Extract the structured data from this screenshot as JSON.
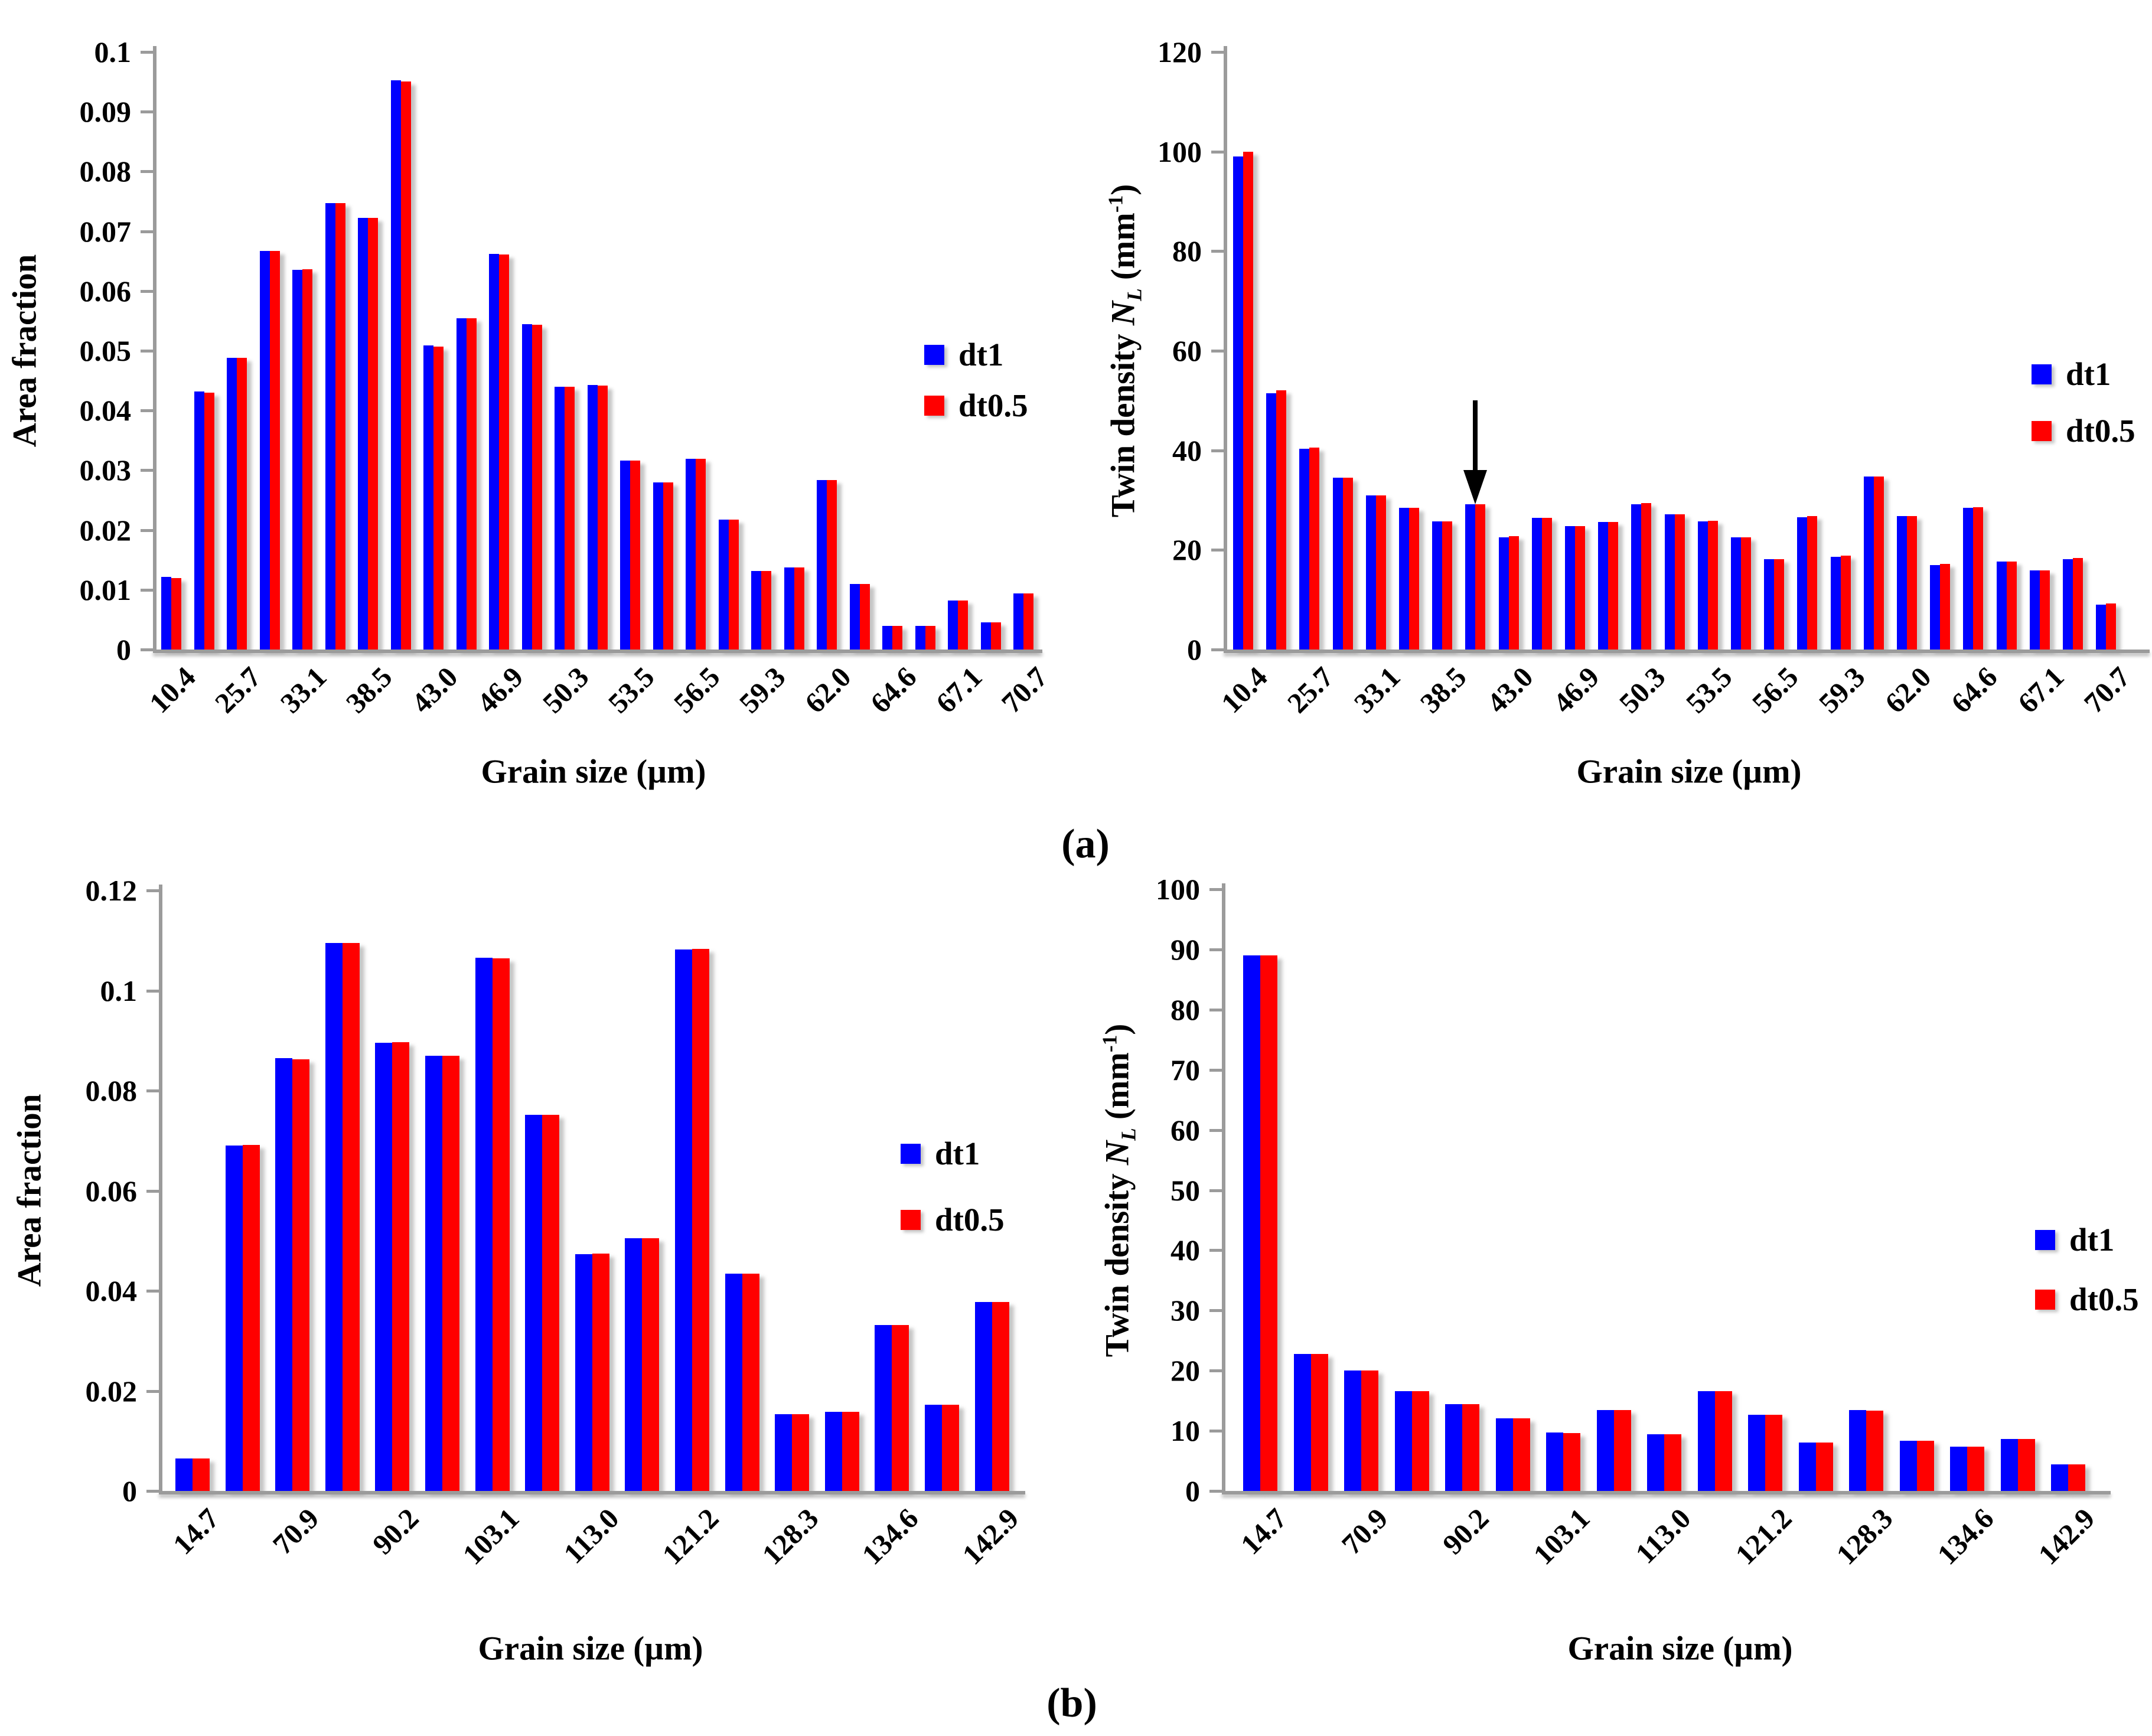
{
  "figure": {
    "background": "#ffffff",
    "description": "Grain size statistics: area fraction and twin density for two time steps"
  },
  "panels": {
    "a_label": "(a)",
    "b_label": "(b)"
  },
  "colors": {
    "dt1": "#0000ff",
    "dt0_5": "#ff0000",
    "axis": "#9b9b9b",
    "text": "#000000",
    "annotation": "#000000"
  },
  "legend": {
    "entries": [
      {
        "label": "dt1"
      },
      {
        "label": "dt0.5"
      }
    ]
  },
  "chart_data": [
    {
      "id": "a_area",
      "type": "bar",
      "panel": "a",
      "xlabel": "Grain size (µm)",
      "ylabel": "Area fraction",
      "ylim": [
        0,
        0.1
      ],
      "grid": false,
      "legend_position": "right-inside",
      "ytick_labels": [
        "0",
        "0.01",
        "0.02",
        "0.03",
        "0.04",
        "0.05",
        "0.06",
        "0.07",
        "0.08",
        "0.09",
        "0.1"
      ],
      "categories": [
        "10.4",
        "",
        "25.7",
        "",
        "33.1",
        "",
        "38.5",
        "",
        "43.0",
        "",
        "46.9",
        "",
        "50.3",
        "",
        "53.5",
        "",
        "56.5",
        "",
        "59.3",
        "",
        "62.0",
        "",
        "64.6",
        "",
        "67.1",
        "",
        "70.7"
      ],
      "series": [
        {
          "name": "dt1",
          "color": "#0000ff",
          "values": [
            0.0122,
            0.0432,
            0.0488,
            0.0667,
            0.0635,
            0.0747,
            0.0722,
            0.0953,
            0.0509,
            0.0554,
            0.0662,
            0.0544,
            0.044,
            0.0443,
            0.0316,
            0.028,
            0.0319,
            0.0217,
            0.0131,
            0.0137,
            0.0284,
            0.011,
            0.004,
            0.004,
            0.0082,
            0.0045,
            0.0094
          ]
        },
        {
          "name": "dt0.5",
          "color": "#ff0000",
          "values": [
            0.012,
            0.043,
            0.0488,
            0.0667,
            0.0636,
            0.0747,
            0.0722,
            0.0951,
            0.0507,
            0.0554,
            0.0661,
            0.0543,
            0.044,
            0.0442,
            0.0316,
            0.028,
            0.0319,
            0.0217,
            0.0131,
            0.0137,
            0.0284,
            0.011,
            0.004,
            0.004,
            0.0082,
            0.0045,
            0.0094
          ]
        }
      ]
    },
    {
      "id": "a_twin",
      "type": "bar",
      "panel": "a",
      "xlabel": "Grain size (µm)",
      "ylabel": "Twin density NL (mm-1)",
      "ylabel_rich": {
        "prefix": "Twin density ",
        "var": "N",
        "var_sub": "L",
        "unit_pre": " (mm",
        "unit_sup": "-1",
        "unit_post": ")"
      },
      "ylim": [
        0,
        120
      ],
      "grid": false,
      "legend_position": "right-inside",
      "annotation": {
        "type": "down-arrow",
        "bar_index": 7
      },
      "ytick_labels": [
        "0",
        "20",
        "40",
        "60",
        "80",
        "100",
        "120"
      ],
      "categories": [
        "10.4",
        "",
        "25.7",
        "",
        "33.1",
        "",
        "38.5",
        "",
        "43.0",
        "",
        "46.9",
        "",
        "50.3",
        "",
        "53.5",
        "",
        "56.5",
        "",
        "59.3",
        "",
        "62.0",
        "",
        "64.6",
        "",
        "67.1",
        "",
        "70.7"
      ],
      "series": [
        {
          "name": "dt1",
          "color": "#0000ff",
          "values": [
            99,
            51.5,
            40.3,
            34.5,
            30.9,
            28.5,
            25.7,
            29.2,
            22.5,
            26.5,
            24.8,
            25.6,
            29.2,
            27.1,
            25.7,
            22.5,
            18.2,
            26.6,
            18.6,
            34.8,
            26.8,
            17.0,
            28.5,
            17.7,
            15.9,
            18.2,
            9.0
          ]
        },
        {
          "name": "dt0.5",
          "color": "#ff0000",
          "values": [
            100,
            52.0,
            40.5,
            34.5,
            31.0,
            28.5,
            25.7,
            29.2,
            22.8,
            26.5,
            24.8,
            25.6,
            29.4,
            27.2,
            25.8,
            22.5,
            18.2,
            26.8,
            18.8,
            34.8,
            26.8,
            17.2,
            28.6,
            17.7,
            15.9,
            18.4,
            9.2
          ]
        }
      ]
    },
    {
      "id": "b_area",
      "type": "bar",
      "panel": "b",
      "xlabel": "Grain size (µm)",
      "ylabel": "Area fraction",
      "ylim": [
        0,
        0.12
      ],
      "grid": false,
      "legend_position": "right-inside",
      "ytick_labels": [
        "0",
        "0.02",
        "0.04",
        "0.06",
        "0.08",
        "0.1",
        "0.12"
      ],
      "categories": [
        "14.7",
        "",
        "70.9",
        "",
        "90.2",
        "",
        "103.1",
        "",
        "113.0",
        "",
        "121.2",
        "",
        "128.3",
        "",
        "134.6",
        "",
        "142.9"
      ],
      "series": [
        {
          "name": "dt1",
          "color": "#0000ff",
          "values": [
            0.0065,
            0.069,
            0.0865,
            0.1095,
            0.0895,
            0.087,
            0.1065,
            0.0752,
            0.0473,
            0.0505,
            0.1082,
            0.0434,
            0.0153,
            0.0158,
            0.0332,
            0.0172,
            0.0378
          ]
        },
        {
          "name": "dt0.5",
          "color": "#ff0000",
          "values": [
            0.0065,
            0.0692,
            0.0863,
            0.1095,
            0.0897,
            0.087,
            0.1064,
            0.0752,
            0.0474,
            0.0505,
            0.1083,
            0.0434,
            0.0153,
            0.0158,
            0.0332,
            0.0172,
            0.0378
          ]
        }
      ]
    },
    {
      "id": "b_twin",
      "type": "bar",
      "panel": "b",
      "xlabel": "Grain size (µm)",
      "ylabel": "Twin density NL (mm-1)",
      "ylabel_rich": {
        "prefix": "Twin density ",
        "var": "N",
        "var_sub": "L",
        "unit_pre": " (mm",
        "unit_sup": "-1",
        "unit_post": ")"
      },
      "ylim": [
        0,
        100
      ],
      "grid": false,
      "legend_position": "right-inside",
      "ytick_labels": [
        "0",
        "10",
        "20",
        "30",
        "40",
        "50",
        "60",
        "70",
        "80",
        "90",
        "100"
      ],
      "categories": [
        "14.7",
        "",
        "70.9",
        "",
        "90.2",
        "",
        "103.1",
        "",
        "113.0",
        "",
        "121.2",
        "",
        "128.3",
        "",
        "134.6",
        "",
        "142.9"
      ],
      "series": [
        {
          "name": "dt1",
          "color": "#0000ff",
          "values": [
            89,
            22.8,
            20.0,
            16.6,
            14.4,
            12.1,
            9.7,
            13.4,
            9.4,
            16.6,
            12.7,
            8.0,
            13.4,
            8.3,
            7.4,
            8.6,
            4.4
          ]
        },
        {
          "name": "dt0.5",
          "color": "#ff0000",
          "values": [
            89,
            22.8,
            20.0,
            16.6,
            14.4,
            12.1,
            9.6,
            13.4,
            9.4,
            16.6,
            12.7,
            8.0,
            13.3,
            8.3,
            7.4,
            8.6,
            4.4
          ]
        }
      ]
    }
  ]
}
